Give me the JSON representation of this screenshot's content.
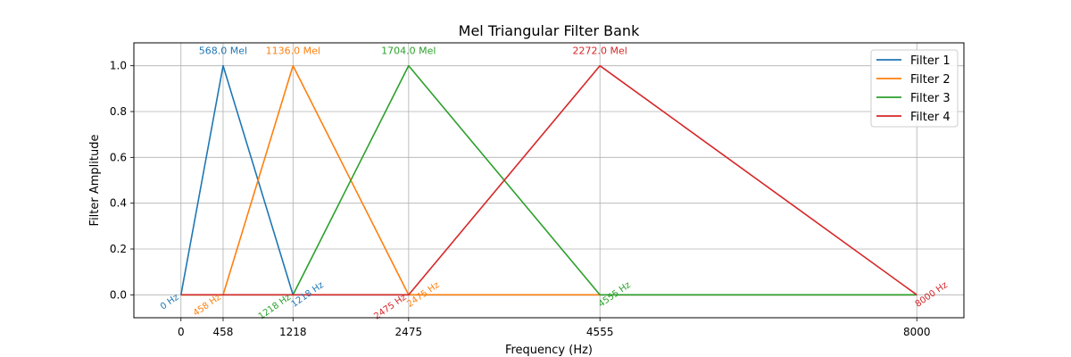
{
  "chart_data": {
    "type": "line",
    "title": "Mel Triangular Filter Bank",
    "xlabel": "Frequency (Hz)",
    "ylabel": "Filter Amplitude",
    "xlim": [
      -512,
      8512
    ],
    "ylim": [
      -0.1,
      1.1
    ],
    "x_ticks": [
      0,
      458,
      1218,
      2475,
      4555,
      8000
    ],
    "x_tick_labels": [
      "0",
      "458",
      "1218",
      "2475",
      "4555",
      "8000"
    ],
    "y_ticks": [
      0.0,
      0.2,
      0.4,
      0.6,
      0.8,
      1.0
    ],
    "y_tick_labels": [
      "0.0",
      "0.2",
      "0.4",
      "0.6",
      "0.8",
      "1.0"
    ],
    "grid": true,
    "legend_position": "top-right",
    "series": [
      {
        "name": "Filter 1",
        "color": "#1f77b4",
        "x": [
          0,
          458,
          1218,
          2475,
          4555,
          8000
        ],
        "y": [
          0,
          1,
          0,
          0,
          0,
          0
        ],
        "peak_label": "568.0 Mel",
        "edge_labels": [
          {
            "x": 0,
            "text": "0 Hz"
          },
          {
            "x": 1218,
            "text": "1218 Hz"
          }
        ]
      },
      {
        "name": "Filter 2",
        "color": "#ff7f0e",
        "x": [
          0,
          458,
          1218,
          2475,
          4555,
          8000
        ],
        "y": [
          0,
          0,
          1,
          0,
          0,
          0
        ],
        "peak_label": "1136.0 Mel",
        "edge_labels": [
          {
            "x": 458,
            "text": "458 Hz"
          },
          {
            "x": 2475,
            "text": "2475 Hz"
          }
        ]
      },
      {
        "name": "Filter 3",
        "color": "#2ca02c",
        "x": [
          0,
          458,
          1218,
          2475,
          4555,
          8000
        ],
        "y": [
          0,
          0,
          0,
          1,
          0,
          0
        ],
        "peak_label": "1704.0 Mel",
        "edge_labels": [
          {
            "x": 1218,
            "text": "1218 Hz"
          },
          {
            "x": 4555,
            "text": "4555 Hz"
          }
        ]
      },
      {
        "name": "Filter 4",
        "color": "#d62728",
        "x": [
          0,
          458,
          1218,
          2475,
          4555,
          8000
        ],
        "y": [
          0,
          0,
          0,
          0,
          1,
          0
        ],
        "peak_label": "2272.0 Mel",
        "edge_labels": [
          {
            "x": 2475,
            "text": "2475 Hz"
          },
          {
            "x": 8000,
            "text": "8000 Hz"
          }
        ]
      }
    ]
  }
}
